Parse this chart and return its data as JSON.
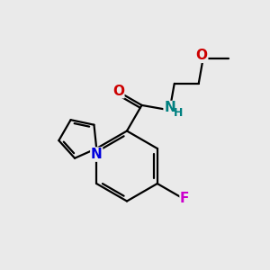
{
  "background_color": "#eaeaea",
  "bond_color": "#000000",
  "bond_width": 1.6,
  "atom_colors": {
    "O": "#cc0000",
    "N_amide": "#008080",
    "N_pyrrole": "#0000dd",
    "F": "#cc00cc",
    "H": "#008080",
    "C": "#000000"
  },
  "font_size_atom": 11,
  "font_size_h": 9,
  "figsize": [
    3.0,
    3.0
  ],
  "dpi": 100
}
